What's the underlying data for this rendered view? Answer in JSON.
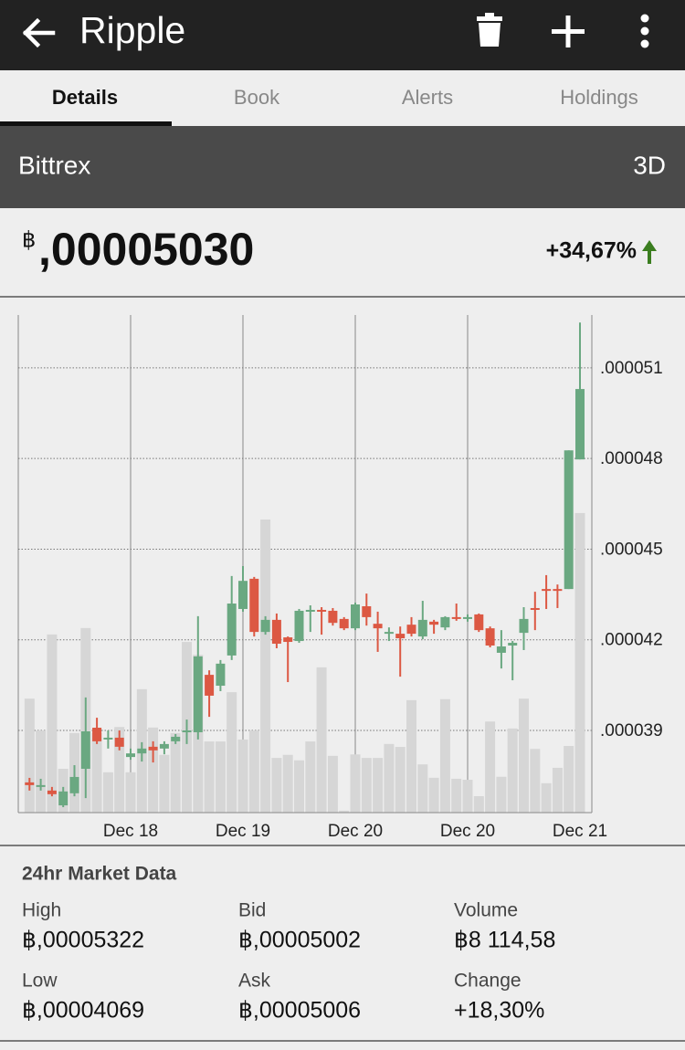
{
  "app_bar": {
    "title": "Ripple"
  },
  "tabs": [
    "Details",
    "Book",
    "Alerts",
    "Holdings"
  ],
  "exchange": {
    "name": "Bittrex",
    "period": "3D"
  },
  "price": {
    "currency": "฿",
    "value": ",00005030",
    "change": "+34,67%"
  },
  "chart_data": {
    "type": "candlestick",
    "categories": [
      null,
      null,
      null,
      null,
      null,
      null,
      null,
      null,
      null,
      "Dec 18",
      null,
      null,
      null,
      null,
      null,
      null,
      null,
      null,
      null,
      "Dec 19",
      null,
      null,
      null,
      null,
      null,
      null,
      null,
      null,
      null,
      "Dec 20",
      null,
      null,
      null,
      null,
      null,
      null,
      null,
      null,
      null,
      "Dec 20",
      null,
      null,
      null,
      null,
      null,
      null,
      null,
      null,
      null,
      "Dec 21"
    ],
    "open": [
      3.728e-05,
      3.713e-05,
      3.701e-05,
      3.652e-05,
      3.692e-05,
      3.773e-05,
      3.909e-05,
      3.87e-05,
      3.876e-05,
      3.812e-05,
      3.824e-05,
      3.846e-05,
      3.84e-05,
      3.864e-05,
      3.894e-05,
      3.894e-05,
      4.084e-05,
      4.048e-05,
      4.148e-05,
      4.302e-05,
      4.402e-05,
      4.226e-05,
      4.266e-05,
      4.208e-05,
      4.196e-05,
      4.296e-05,
      4.299e-05,
      4.296e-05,
      4.269e-05,
      4.238e-05,
      4.311e-05,
      4.253e-05,
      4.223e-05,
      4.22e-05,
      4.25e-05,
      4.211e-05,
      4.26e-05,
      4.241e-05,
      4.275e-05,
      4.269e-05,
      4.284e-05,
      4.238e-05,
      4.157e-05,
      4.181e-05,
      4.223e-05,
      4.305e-05,
      4.368e-05,
      4.368e-05,
      4.368e-05,
      4.797e-05
    ],
    "high": [
      3.743e-05,
      3.74e-05,
      3.713e-05,
      3.713e-05,
      3.785e-05,
      4.009e-05,
      3.942e-05,
      3.9e-05,
      3.9e-05,
      3.84e-05,
      3.861e-05,
      3.864e-05,
      3.864e-05,
      3.888e-05,
      3.936e-05,
      4.278e-05,
      4.099e-05,
      4.133e-05,
      4.411e-05,
      4.444e-05,
      4.408e-05,
      4.278e-05,
      4.287e-05,
      4.211e-05,
      4.302e-05,
      4.314e-05,
      4.308e-05,
      4.305e-05,
      4.275e-05,
      4.323e-05,
      4.353e-05,
      4.293e-05,
      4.241e-05,
      4.244e-05,
      4.275e-05,
      4.329e-05,
      4.266e-05,
      4.278e-05,
      4.32e-05,
      4.284e-05,
      4.287e-05,
      4.244e-05,
      4.232e-05,
      4.196e-05,
      4.308e-05,
      4.359e-05,
      4.414e-05,
      4.383e-05,
      4.827e-05,
      5.25e-05
    ],
    "low": [
      3.701e-05,
      3.701e-05,
      3.682e-05,
      3.646e-05,
      3.682e-05,
      3.676e-05,
      3.855e-05,
      3.84e-05,
      3.834e-05,
      3.803e-05,
      3.797e-05,
      3.794e-05,
      3.821e-05,
      3.855e-05,
      3.855e-05,
      3.87e-05,
      3.945e-05,
      4.03e-05,
      4.133e-05,
      4.293e-05,
      4.211e-05,
      4.217e-05,
      4.172e-05,
      4.06e-05,
      4.19e-05,
      4.226e-05,
      4.217e-05,
      4.247e-05,
      4.232e-05,
      4.232e-05,
      4.247e-05,
      4.16e-05,
      4.196e-05,
      4.078e-05,
      4.211e-05,
      4.202e-05,
      4.22e-05,
      4.232e-05,
      4.263e-05,
      4.26e-05,
      4.226e-05,
      4.175e-05,
      4.105e-05,
      4.066e-05,
      4.166e-05,
      4.232e-05,
      4.302e-05,
      4.305e-05,
      4.368e-05,
      4.797e-05
    ],
    "close": [
      3.719e-05,
      3.719e-05,
      3.689e-05,
      3.698e-05,
      3.746e-05,
      3.897e-05,
      3.864e-05,
      3.876e-05,
      3.846e-05,
      3.824e-05,
      3.84e-05,
      3.834e-05,
      3.855e-05,
      3.879e-05,
      3.9e-05,
      4.145e-05,
      4.015e-05,
      4.121e-05,
      4.32e-05,
      4.395e-05,
      4.226e-05,
      4.266e-05,
      4.187e-05,
      4.193e-05,
      4.296e-05,
      4.299e-05,
      4.296e-05,
      4.256e-05,
      4.238e-05,
      4.317e-05,
      4.275e-05,
      4.238e-05,
      4.226e-05,
      4.205e-05,
      4.22e-05,
      4.266e-05,
      4.25e-05,
      4.275e-05,
      4.269e-05,
      4.275e-05,
      4.232e-05,
      4.181e-05,
      4.178e-05,
      4.19e-05,
      4.269e-05,
      4.299e-05,
      4.362e-05,
      4.365e-05,
      4.827e-05,
      5.03e-05
    ],
    "up_color": "#6aa881",
    "down_color": "#dc5843",
    "volume": [
      22.9,
      16.5,
      35.8,
      8.8,
      16.0,
      37.1,
      16.0,
      8.1,
      17.2,
      8.1,
      24.8,
      17.1,
      11.6,
      16.0,
      34.3,
      31.7,
      14.3,
      14.3,
      24.2,
      14.7,
      16.5,
      58.9,
      11.0,
      11.6,
      10.5,
      14.3,
      29.2,
      11.4,
      0.4,
      11.7,
      11.0,
      11.0,
      13.8,
      13.2,
      22.6,
      9.7,
      7.0,
      22.8,
      6.8,
      6.6,
      3.3,
      18.3,
      7.2,
      16.9,
      22.9,
      12.8,
      5.9,
      9.0,
      13.4,
      60.2
    ],
    "volume_color": "#d6d6d6",
    "ylim": [
      3.628e-05,
      5.275e-05
    ],
    "yticks": [
      {
        "value": 3.9e-05,
        "label": ".000039"
      },
      {
        "value": 4.2e-05,
        "label": ".000042"
      },
      {
        "value": 4.5e-05,
        "label": ".000045"
      },
      {
        "value": 4.8e-05,
        "label": ".000048"
      },
      {
        "value": 5.1e-05,
        "label": ".000051"
      }
    ],
    "y2lim": [
      0,
      100
    ],
    "grid": true
  },
  "market_data": {
    "title": "24hr Market Data",
    "items": [
      {
        "label": "High",
        "value": "฿,00005322"
      },
      {
        "label": "Bid",
        "value": "฿,00005002"
      },
      {
        "label": "Volume",
        "value": "฿8 114,58"
      },
      {
        "label": "Low",
        "value": "฿,00004069"
      },
      {
        "label": "Ask",
        "value": "฿,00005006"
      },
      {
        "label": "Change",
        "value": "+18,30%"
      }
    ]
  }
}
